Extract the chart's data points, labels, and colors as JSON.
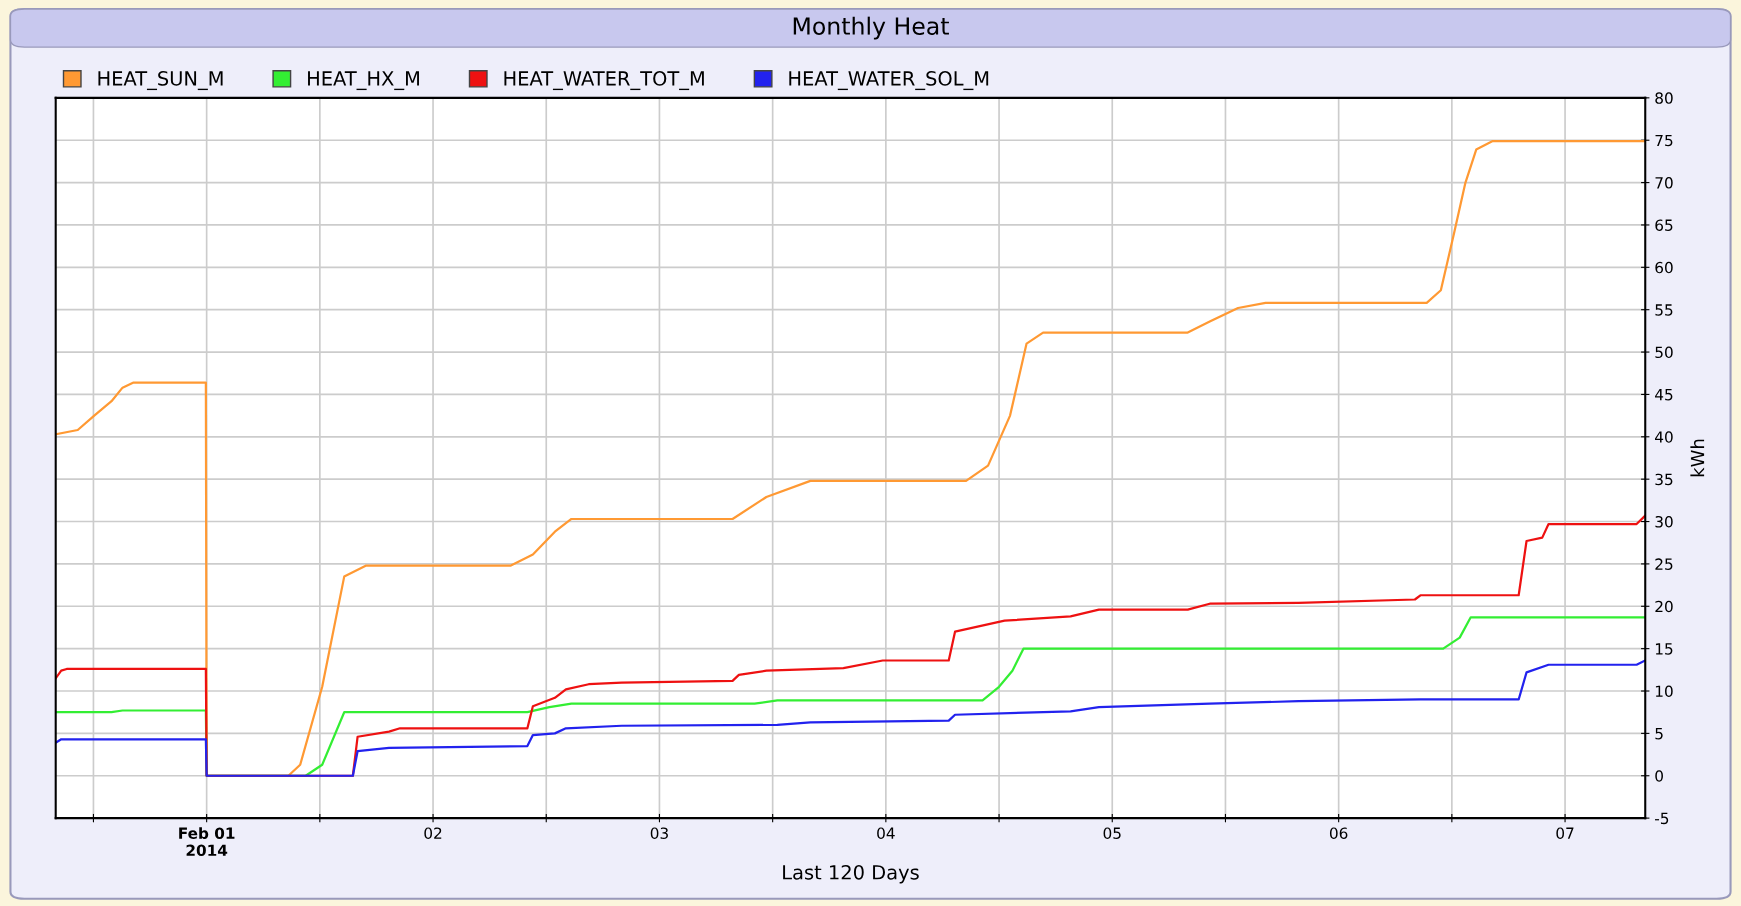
{
  "chart_data": {
    "type": "line",
    "title": "Monthly Heat",
    "xlabel": "Last 120 Days",
    "ylabel": "kWh",
    "xlim": [
      "2014-01-31T08:00",
      "2014-02-07T08:30"
    ],
    "xticks": [
      {
        "value": "2014-01-31T12:00",
        "label": null
      },
      {
        "value": "2014-02-01",
        "label": "Feb 01\n2014"
      },
      {
        "value": "2014-02-01T12:00",
        "label": null
      },
      {
        "value": "2014-02-02",
        "label": "02"
      },
      {
        "value": "2014-02-02T12:00",
        "label": null
      },
      {
        "value": "2014-02-03",
        "label": "03"
      },
      {
        "value": "2014-02-03T12:00",
        "label": null
      },
      {
        "value": "2014-02-04",
        "label": "04"
      },
      {
        "value": "2014-02-04T12:00",
        "label": null
      },
      {
        "value": "2014-02-05",
        "label": "05"
      },
      {
        "value": "2014-02-05T12:00",
        "label": null
      },
      {
        "value": "2014-02-06",
        "label": "06"
      },
      {
        "value": "2014-02-06T12:00",
        "label": null
      },
      {
        "value": "2014-02-07",
        "label": "07"
      }
    ],
    "ylim": [
      -5,
      80
    ],
    "yticks": [
      -5,
      0,
      5,
      10,
      15,
      20,
      25,
      30,
      35,
      40,
      45,
      50,
      55,
      60,
      65,
      70,
      75,
      80
    ],
    "grid": true,
    "legend": "top left",
    "marker": "none",
    "line_style": "solid",
    "series": [
      {
        "name": "HEAT_SUN_M",
        "color": "#ff9933",
        "x": [
          "2014-01-31T08:00",
          "2014-01-31T10:20",
          "2014-01-31T12:05",
          "2014-01-31T13:55",
          "2014-01-31T15:05",
          "2014-01-31T16:15",
          "2014-01-31T23:55",
          "2014-02-01T00:00",
          "2014-02-01T08:40",
          "2014-02-01T09:55",
          "2014-02-01T12:15",
          "2014-02-01T14:35",
          "2014-02-01T16:55",
          "2014-02-02T08:15",
          "2014-02-02T10:35",
          "2014-02-02T12:55",
          "2014-02-02T14:40",
          "2014-02-03T07:45",
          "2014-02-03T11:20",
          "2014-02-03T16:00",
          "2014-02-04T08:30",
          "2014-02-04T10:50",
          "2014-02-04T13:10",
          "2014-02-04T14:55",
          "2014-02-04T16:40",
          "2014-02-05T08:00",
          "2014-02-05T10:20",
          "2014-02-05T13:20",
          "2014-02-05T16:15",
          "2014-02-06T09:20",
          "2014-02-06T10:50",
          "2014-02-06T12:15",
          "2014-02-06T13:25",
          "2014-02-06T14:35",
          "2014-02-06T16:20",
          "2014-02-07T08:30"
        ],
        "values": [
          40.3,
          40.8,
          42.5,
          44.2,
          45.8,
          46.4,
          46.4,
          0,
          0,
          1.3,
          10.5,
          23.5,
          24.8,
          24.8,
          26.1,
          28.8,
          30.3,
          30.3,
          32.9,
          34.8,
          34.8,
          36.6,
          42.5,
          51.0,
          52.3,
          52.3,
          53.6,
          55.2,
          55.8,
          55.8,
          57.3,
          64.1,
          69.9,
          73.9,
          74.9,
          74.9
        ]
      },
      {
        "name": "HEAT_HX_M",
        "color": "#33ee33",
        "x": [
          "2014-01-31T08:00",
          "2014-01-31T13:55",
          "2014-01-31T15:05",
          "2014-01-31T23:55",
          "2014-02-01T00:00",
          "2014-02-01T10:30",
          "2014-02-01T12:15",
          "2014-02-01T14:35",
          "2014-02-02T10:00",
          "2014-02-02T12:20",
          "2014-02-02T14:40",
          "2014-02-03T10:05",
          "2014-02-03T12:30",
          "2014-02-04T10:15",
          "2014-02-04T12:00",
          "2014-02-04T13:25",
          "2014-02-04T14:35",
          "2014-02-06T11:05",
          "2014-02-06T12:50",
          "2014-02-06T14:00",
          "2014-02-07T08:30"
        ],
        "values": [
          7.5,
          7.5,
          7.7,
          7.7,
          0,
          0,
          1.3,
          7.5,
          7.5,
          8.1,
          8.5,
          8.5,
          8.9,
          8.9,
          10.5,
          12.4,
          15.0,
          15.0,
          16.3,
          18.7,
          18.7
        ]
      },
      {
        "name": "HEAT_WATER_TOT_M",
        "color": "#ee1111",
        "x": [
          "2014-01-31T08:00",
          "2014-01-31T08:35",
          "2014-01-31T09:10",
          "2014-01-31T23:55",
          "2014-02-01T00:00",
          "2014-02-01T15:30",
          "2014-02-01T16:00",
          "2014-02-01T19:20",
          "2014-02-01T20:30",
          "2014-02-02T10:00",
          "2014-02-02T10:35",
          "2014-02-02T12:55",
          "2014-02-02T14:05",
          "2014-02-02T16:30",
          "2014-02-02T20:00",
          "2014-02-03T07:45",
          "2014-02-03T08:25",
          "2014-02-03T11:20",
          "2014-02-03T19:30",
          "2014-02-03T23:40",
          "2014-02-04T06:40",
          "2014-02-04T07:20",
          "2014-02-04T12:35",
          "2014-02-04T19:35",
          "2014-02-04T22:35",
          "2014-02-05T08:00",
          "2014-02-05T10:20",
          "2014-02-05T19:45",
          "2014-02-06T08:05",
          "2014-02-06T08:40",
          "2014-02-06T19:05",
          "2014-02-06T19:55",
          "2014-02-06T21:35",
          "2014-02-06T22:15",
          "2014-02-07T07:35",
          "2014-02-07T08:30"
        ],
        "values": [
          11.5,
          12.4,
          12.6,
          12.6,
          0,
          0,
          4.6,
          5.2,
          5.6,
          5.6,
          8.2,
          9.2,
          10.2,
          10.8,
          11.0,
          11.2,
          11.9,
          12.4,
          12.7,
          13.6,
          13.6,
          17.0,
          18.3,
          18.8,
          19.6,
          19.6,
          20.3,
          20.4,
          20.8,
          21.3,
          21.3,
          27.7,
          28.1,
          29.7,
          29.7,
          30.7
        ]
      },
      {
        "name": "HEAT_WATER_SOL_M",
        "color": "#2222ee",
        "x": [
          "2014-01-31T08:00",
          "2014-01-31T08:35",
          "2014-01-31T23:55",
          "2014-02-01T00:00",
          "2014-02-01T15:30",
          "2014-02-01T16:00",
          "2014-02-01T19:20",
          "2014-02-02T10:00",
          "2014-02-02T10:35",
          "2014-02-02T12:55",
          "2014-02-02T14:05",
          "2014-02-02T20:00",
          "2014-02-03T12:30",
          "2014-02-03T16:00",
          "2014-02-04T06:40",
          "2014-02-04T07:20",
          "2014-02-04T19:35",
          "2014-02-04T22:35",
          "2014-02-05T10:20",
          "2014-02-05T19:45",
          "2014-02-06T08:40",
          "2014-02-06T19:05",
          "2014-02-06T19:55",
          "2014-02-06T22:15",
          "2014-02-07T07:35",
          "2014-02-07T08:30"
        ],
        "values": [
          3.9,
          4.3,
          4.3,
          0,
          0,
          2.9,
          3.3,
          3.5,
          4.8,
          5.0,
          5.6,
          5.9,
          6.0,
          6.3,
          6.5,
          7.2,
          7.6,
          8.1,
          8.5,
          8.8,
          9.0,
          9.0,
          12.2,
          13.1,
          13.1,
          13.6
        ]
      }
    ]
  }
}
